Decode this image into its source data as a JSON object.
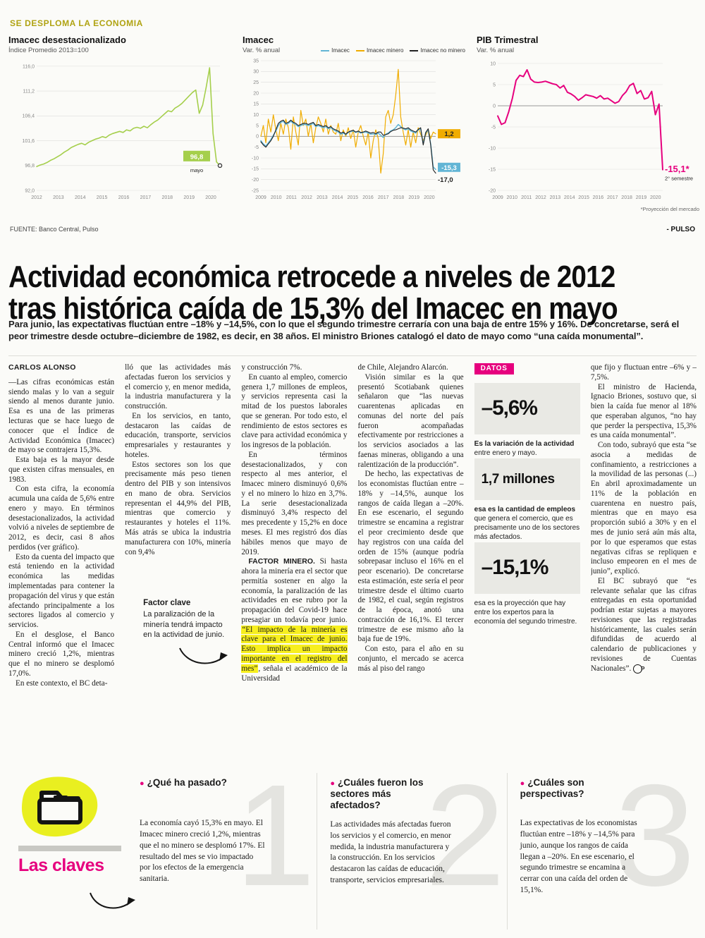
{
  "kicker": "SE DESPLOMA LA ECONOMIA",
  "source": "FUENTE: Banco Central, Pulso",
  "brand": "- PULSO",
  "headline": {
    "line1": "Actividad económica retrocede a niveles de 2012",
    "line2": "tras histórica caída de 15,3% del Imacec en mayo"
  },
  "lede": "Para junio, las expectativas fluctúan entre –18% y –14,5%, con lo que el segundo trimestre cerraría con una baja de entre 15% y 16%. De concretarse, será el peor trimestre desde octubre–diciembre de 1982, es decir, en 38 años. El ministro Briones catalogó el dato de mayo como “una caída monumental”.",
  "article": {
    "byline": "CARLOS ALONSO",
    "endmark": "P",
    "col1": [
      "—Las cifras económicas están siendo malas y lo van a seguir siendo al menos durante junio. Esa es una de las primeras lecturas que se hace luego de conocer que el Índice de Actividad Económica (Imacec) de mayo se contrajera 15,3%.",
      "Esta baja es la mayor desde que existen cifras mensuales, en 1983.",
      "Con esta cifra, la economía acumula una caída de 5,6% entre enero y mayo. En términos desestacionalizados, la actividad volvió a niveles de septiembre de 2012, es decir, casi 8 años perdidos (ver gráfico).",
      "Esto da cuenta del impacto que está teniendo en la actividad económica las medidas implementadas para contener la propagación del virus y que están afectando principalmente a los sectores ligados al comercio y servicios.",
      "En el desglose, el Banco Central informó que el Imacec minero creció 1,2%, mientras que el no minero se desplomó 17,0%.",
      "En este contexto, el BC deta-"
    ],
    "col2": [
      "lló que las actividades más afectadas fueron los servicios y el comercio y, en menor medida, la industria manufacturera y la construcción.",
      "En los servicios, en tanto, destacaron las caídas de educación, transporte, servicios empresariales y restaurantes y hoteles.",
      "Estos sectores son los que precisamente más peso tienen dentro del PIB y son intensivos en mano de obra. Servicios representan el 44,9% del PIB, mientras que comercio y restaurantes y hoteles el 11%. Más atrás se ubica la industria manufacturera con 10%, minería con 9,4%"
    ],
    "note": {
      "title": "Factor clave",
      "text": "La paralización de la minería tendrá impacto en la actividad de junio."
    },
    "col3": [
      "y construcción 7%.",
      "En cuanto al empleo, comercio genera 1,7 millones de empleos, y servicios representa casi la mitad de los puestos laborales que se generan. Por todo esto, el rendimiento de estos sectores es clave para actividad económica y los ingresos de la población.",
      "En términos desestacionalizados, y con respecto al mes anterior, el Imacec minero disminuyó 0,6% y el no minero lo hizo en 3,7%. La serie desestacionalizada disminuyó 3,4% respecto del mes precedente y 15,2% en doce meses. El mes registró dos días hábiles menos que mayo de 2019."
    ],
    "factor": {
      "lead": "FACTOR MINERO.",
      "pre": " Si hasta ahora la minería era el sector que permitía sostener en algo la economía, la paralización de las actividades en ese rubro por la propagación del Covid-19 hace presagiar un todavía peor junio. ",
      "highlight": "“El impacto de la minería es clave para el Imacec de junio. Esto implica un impacto importante en el registro del mes”",
      "post": ", señala el académico de la Universidad"
    },
    "col4": [
      "de Chile, Alejandro Alarcón.",
      "Visión similar es la que presentó Scotiabank quienes señalaron que “las nuevas cuarentenas aplicadas en comunas del norte del país fueron acompañadas efectivamente por restricciones a los servicios asociados a las faenas mineras, obligando a una ralentización de la producción”.",
      "De hecho, las expectativas de los economistas fluctúan entre –18% y –14,5%, aunque los rangos de caída llegan a –20%. En ese escenario, el segundo trimestre se encamina a registrar el peor crecimiento desde que hay registros con una caída del orden de 15% (aunque podría sobrepasar incluso el 16% en el peor escenario). De concretarse esta estimación, este sería el peor trimestre desde el último cuarto de 1982, el cual, según registros de la época, anotó una contracción de 16,1%. El tercer trimestre de ese mismo año la baja fue de 19%.",
      "Con esto, para el año en su conjunto, el mercado se acerca más al piso del rango"
    ],
    "col6": [
      "que fijo y fluctuan entre –6% y –7,5%.",
      "El ministro de Hacienda, Ignacio Briones, sostuvo que, si bien la caída fue menor al 18% que esperaban algunos, “no hay que perder la perspectiva, 15,3% es una caída monumental”.",
      "Con todo, subrayó que esta “se asocia a medidas de confinamiento, a restricciones a la movilidad de las personas (...) En abril aproximadamente un 11% de la población en cuarentena en nuestro país, mientras que en mayo esa proporción subió a 30% y en el mes de junio será aún más alta, por lo que esperamos que estas negativas cifras se repliquen e incluso empeoren en el mes de junio”, explicó.",
      "El BC subrayó que “es relevante señalar que las cifras entregadas en esta oportunidad podrían estar sujetas a mayores revisiones que las registradas históricamente, las cuales serán difundidas de acuerdo al calendario de publicaciones y revisiones de Cuentas Nacionales”."
    ]
  },
  "datos": {
    "label": "DATOS",
    "stats": [
      {
        "value": "–5,6%",
        "caption_bold": "Es la variación de la actividad",
        "caption_rest": " entre enero y mayo."
      },
      {
        "value": "1,7 millones",
        "caption_bold": "esa es la cantidad de empleos",
        "caption_rest": " que genera el comercio, que es precisamente uno de los sectores más afectados."
      },
      {
        "value": "–15,1%",
        "caption_bold": "",
        "caption_rest": "esa es la proyección que hay entre los expertos para la economía del segundo trimestre."
      }
    ]
  },
  "claves": {
    "title": "Las claves",
    "bullet": "●",
    "items": [
      {
        "number": "1",
        "question": "¿Qué ha pasado?",
        "text": "La economía cayó 15,3% en mayo. El Imacec minero creció 1,2%, mientras que el no minero se desplomó 17%. El resultado del mes se vio impactado por los efectos de la emergencia sanitaria."
      },
      {
        "number": "2",
        "question": "¿Cuáles fueron los sectores más afectados?",
        "text": "Las actividades más afectadas fueron los servicios y el comercio, en menor medida, la industria manufacturera y la construcción. En los servicios destacaron las caídas de educación, transporte, servicios empresariales."
      },
      {
        "number": "3",
        "question": "¿Cuáles son perspectivas?",
        "text": "Las expectativas de los economistas fluctúan entre –18% y –14,5% para junio, aunque los rangos de caída llegan a –20%. En ese escenario, el segundo trimestre se encamina a cerrar con una caída del orden de 15,1%."
      }
    ]
  },
  "colors": {
    "magenta": "#e6007e",
    "green": "#a5cf4c",
    "blue": "#62b5d5",
    "yellow": "#f0ac00",
    "highlight": "#f7ef1e",
    "kicker": "#b0a312"
  },
  "chart_data": [
    {
      "type": "line",
      "title": "Imacec desestacionalizado",
      "subtitle": "Índice Promedio 2013=100",
      "series": [
        {
          "name": "Imacec desestacionalizado",
          "color": "#a5cf4c",
          "width": 1.6,
          "end_label": "96,8",
          "end_sublabel": "mayo",
          "label_bg": "#a5cf4c",
          "label_color": "#ffffff",
          "label_pos": "left",
          "end_dot": true,
          "values": [
            96.6,
            96.9,
            97.1,
            97.4,
            97.8,
            98.1,
            98.5,
            98.9,
            99.4,
            99.8,
            100.3,
            100.6,
            100.9,
            101.1,
            100.8,
            101.3,
            101.6,
            101.9,
            102.1,
            102.4,
            102.2,
            102.7,
            103.0,
            103.2,
            103.4,
            103.2,
            103.7,
            103.5,
            104.0,
            104.2,
            104.0,
            104.4,
            104.1,
            104.7,
            105.2,
            105.6,
            106.2,
            106.8,
            107.4,
            107.2,
            107.9,
            108.3,
            108.8,
            109.5,
            110.2,
            110.9,
            111.4,
            106.9,
            108.5,
            111.9,
            115.7,
            103.0,
            97.5,
            96.8
          ]
        }
      ],
      "layout": {
        "xlim": [
          2012,
          2020.42
        ],
        "ylim": [
          92,
          116.8
        ],
        "yticks": [
          116,
          111.2,
          106.4,
          101.6,
          96.8,
          92
        ],
        "ytick_decimals": 1,
        "xticks": [
          2012,
          2013,
          2014,
          2015,
          2016,
          2017,
          2018,
          2019,
          2020
        ],
        "zero_line": false,
        "grid": true,
        "legend_position": "none",
        "margins": {
          "l": 40,
          "r": 16,
          "t": 8,
          "b": 16
        }
      }
    },
    {
      "type": "line",
      "title": "Imacec",
      "subtitle": "Var. % anual",
      "legend": [
        {
          "label": "Imacec",
          "color": "#62b5d5"
        },
        {
          "label": "Imacec minero",
          "color": "#f0ac00"
        },
        {
          "label": "Imacec no minero",
          "color": "#222222"
        }
      ],
      "series": [
        {
          "name": "Imacec minero",
          "color": "#f0ac00",
          "width": 1.2,
          "end_label": "1,2",
          "label_bg": "#f0ac00",
          "label_color": "#222222",
          "label_dy": 0,
          "values": [
            0,
            5,
            -3,
            8,
            2,
            10,
            3,
            -2,
            6,
            1,
            8,
            4,
            -6,
            9,
            2,
            -4,
            12,
            5,
            8,
            0,
            6,
            -3,
            4,
            9,
            6,
            2,
            8,
            1,
            5,
            2,
            1,
            6,
            -2,
            3,
            0,
            4,
            -1,
            3,
            -5,
            2,
            5,
            0,
            -4,
            2,
            -10,
            -2,
            3,
            -1,
            -17,
            -8,
            9,
            12,
            6,
            10,
            19,
            31,
            9,
            2,
            -4,
            3,
            -5,
            2,
            -3,
            4,
            1,
            -2,
            0.5,
            3,
            -1,
            2,
            1.2
          ]
        },
        {
          "name": "Imacec",
          "color": "#62b5d5",
          "width": 1.5,
          "end_label": "-15,3",
          "label_bg": "#62b5d5",
          "label_color": "#ffffff",
          "label_dy": -3,
          "values": [
            -2,
            -3.5,
            -4.5,
            -3,
            -1.5,
            0.5,
            2.5,
            5,
            6.5,
            7,
            5.5,
            6,
            7,
            6,
            5.5,
            4.5,
            5,
            5.5,
            5.5,
            5,
            5.5,
            6,
            4.5,
            5,
            4.5,
            4,
            4.5,
            3.5,
            4,
            3,
            2.5,
            2,
            1,
            1.5,
            0.8,
            1.8,
            2.2,
            2.5,
            1.8,
            2.2,
            1.5,
            1.8,
            2,
            1.5,
            1,
            1.2,
            0.8,
            1.5,
            0.5,
            -0.5,
            1,
            1.5,
            2.5,
            3,
            4,
            5.5,
            4.5,
            3.5,
            3,
            3.5,
            2.5,
            2,
            1.5,
            3,
            3.5,
            -3.5,
            1.5,
            3,
            -3.5,
            -14.1,
            -15.3
          ]
        },
        {
          "name": "Imacec no minero",
          "color": "#222222",
          "width": 1.1,
          "end_label": "-17,0",
          "label_color": "#222222",
          "label_dy": 9,
          "values": [
            -2.5,
            -4,
            -5,
            -3.5,
            -2,
            0,
            3,
            6,
            7,
            7.5,
            6,
            6.5,
            7.5,
            6.5,
            6,
            5,
            5.5,
            6,
            6,
            5.5,
            6,
            6.5,
            5,
            5.5,
            5,
            4.5,
            5,
            4,
            4.5,
            3.5,
            3,
            2.5,
            1.5,
            2,
            1,
            2,
            2.5,
            2.8,
            2,
            2.5,
            1.8,
            2,
            2.5,
            2,
            1.5,
            1.8,
            1.2,
            2,
            2,
            0.5,
            0.8,
            1.2,
            2.2,
            2.8,
            3,
            3.5,
            4,
            3.8,
            3.5,
            4,
            3,
            2.5,
            2,
            3.2,
            4,
            -4,
            1.8,
            3.5,
            -4,
            -15.5,
            -17
          ]
        }
      ],
      "layout": {
        "xlim": [
          2009,
          2020.42
        ],
        "ylim": [
          -25,
          35
        ],
        "yticks": [
          35,
          30,
          25,
          20,
          15,
          10,
          5,
          0,
          -5,
          -10,
          -15,
          -20,
          -25
        ],
        "ytick_decimals": 0,
        "xticks": [
          2009,
          2010,
          2011,
          2012,
          2013,
          2014,
          2015,
          2016,
          2017,
          2018,
          2019,
          2020
        ],
        "zero_line": true,
        "grid": true,
        "legend_position": "top-right",
        "margins": {
          "l": 26,
          "r": 42,
          "t": 6,
          "b": 16
        }
      }
    },
    {
      "type": "line",
      "title": "PIB Trimestral",
      "subtitle": "Var. % anual",
      "footnote": "*Proyección del mercado",
      "series": [
        {
          "name": "PIB Trimestral",
          "color": "#e6007e",
          "width": 2,
          "end_label": "-15,1*",
          "end_sublabel": "2° semestre",
          "label_color": "#e6007e",
          "label_big": true,
          "label_dy": 0,
          "values": [
            -2.4,
            -4.4,
            -4.0,
            -1.4,
            1.8,
            6.0,
            7.2,
            6.9,
            8.5,
            6.3,
            5.6,
            5.5,
            5.6,
            5.8,
            5.5,
            5.2,
            5.0,
            4.2,
            4.8,
            3.2,
            2.8,
            2.2,
            1.3,
            1.9,
            2.6,
            2.4,
            2.2,
            1.8,
            2.4,
            1.6,
            1.8,
            1.2,
            0.6,
            1.0,
            2.4,
            3.3,
            4.8,
            5.3,
            2.9,
            3.6,
            1.6,
            1.9,
            3.4,
            -2.1,
            0.4,
            -15.1
          ]
        }
      ],
      "layout": {
        "xlim": [
          2009,
          2020.5
        ],
        "ylim": [
          -20,
          10
        ],
        "yticks": [
          10,
          5,
          0,
          -5,
          -10,
          -15,
          -20
        ],
        "ytick_decimals": 0,
        "xticks": [
          2009,
          2010,
          2011,
          2012,
          2013,
          2014,
          2015,
          2016,
          2017,
          2018,
          2019,
          2020
        ],
        "zero_line": true,
        "grid": true,
        "legend_position": "none",
        "margins": {
          "l": 30,
          "r": 52,
          "t": 10,
          "b": 16
        }
      }
    }
  ]
}
